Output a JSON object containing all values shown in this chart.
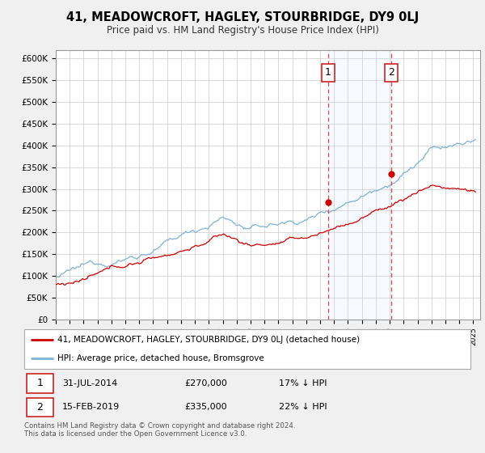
{
  "title": "41, MEADOWCROFT, HAGLEY, STOURBRIDGE, DY9 0LJ",
  "subtitle": "Price paid vs. HM Land Registry's House Price Index (HPI)",
  "ylim": [
    0,
    620000
  ],
  "yticks": [
    0,
    50000,
    100000,
    150000,
    200000,
    250000,
    300000,
    350000,
    400000,
    450000,
    500000,
    550000,
    600000
  ],
  "ytick_labels": [
    "£0",
    "£50K",
    "£100K",
    "£150K",
    "£200K",
    "£250K",
    "£300K",
    "£350K",
    "£400K",
    "£450K",
    "£500K",
    "£550K",
    "£600K"
  ],
  "xlim_start": 1995.0,
  "xlim_end": 2025.5,
  "event1_date": 2014.58,
  "event1_price": 270000,
  "event2_date": 2019.12,
  "event2_price": 335000,
  "legend_line1": "41, MEADOWCROFT, HAGLEY, STOURBRIDGE, DY9 0LJ (detached house)",
  "legend_line2": "HPI: Average price, detached house, Bromsgrove",
  "footer": "Contains HM Land Registry data © Crown copyright and database right 2024.\nThis data is licensed under the Open Government Licence v3.0.",
  "red_color": "#cc0000",
  "blue_color": "#7fb3d3",
  "bg_color": "#f0f0f0",
  "plot_bg": "#ffffff",
  "grid_color": "#cccccc"
}
